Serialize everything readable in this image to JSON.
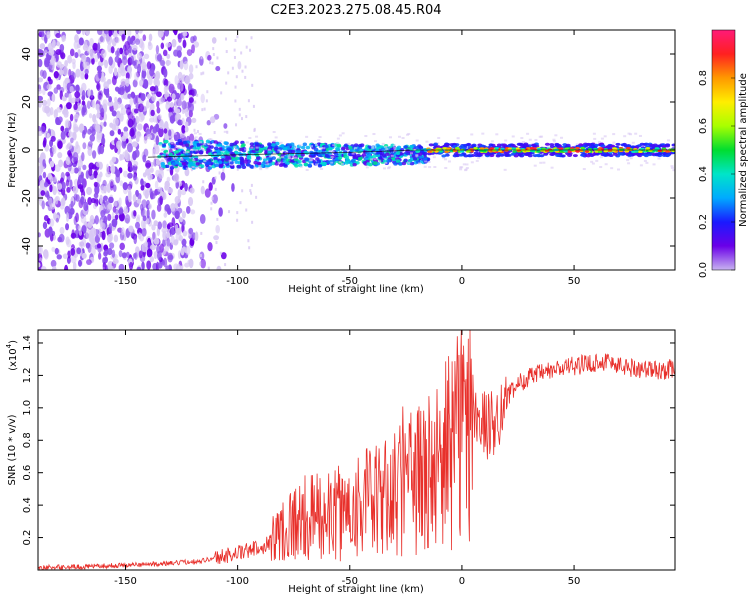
{
  "figure": {
    "title": "C2E3.2023.275.08.45.R04"
  },
  "colors": {
    "background": "#ffffff",
    "snr_line": "#e8302b",
    "scatter_low": "#d8c8f4",
    "scatter_mid": "#8a4dee",
    "scatter_high": "#6a00e8"
  },
  "chart_data": [
    {
      "type": "heatmap",
      "xlabel": "Height of straight line (km)",
      "ylabel": "Frequency (Hz)",
      "xlim": [
        -189,
        95
      ],
      "ylim": [
        -50,
        50
      ],
      "x_ticks": [
        -150,
        -100,
        -50,
        0,
        50
      ],
      "y_ticks": [
        -40,
        -20,
        0,
        20,
        40
      ],
      "grid": false,
      "colorbar": {
        "label": "Normalized spectral amplitude",
        "range": [
          0.0,
          1.0
        ],
        "ticks": [
          "0.0",
          "0.2",
          "0.4",
          "0.6",
          "0.8"
        ],
        "colormap": [
          "#c8b4f0",
          "#6a00e8",
          "#1a1aff",
          "#00aaff",
          "#00e5c8",
          "#00dd30",
          "#a8ff00",
          "#ffee00",
          "#ff9900",
          "#ff2020",
          "#ff1a78"
        ]
      },
      "regions": [
        {
          "x": [
            -189,
            -120
          ],
          "y": [
            -50,
            50
          ],
          "amplitude": [
            0.0,
            0.2
          ]
        },
        {
          "x": [
            -135,
            -15
          ],
          "y": [
            -10,
            7
          ],
          "amplitude": [
            0.1,
            0.5
          ]
        },
        {
          "x": [
            -15,
            95
          ],
          "y": [
            -4,
            4
          ],
          "amplitude": [
            0.1,
            1.0
          ]
        }
      ],
      "trace": {
        "x": [
          -140,
          -100,
          -50,
          -20,
          0,
          20,
          50,
          95
        ],
        "y": [
          -3,
          -2,
          -1,
          0,
          0,
          0,
          0,
          0
        ]
      }
    },
    {
      "type": "line",
      "xlabel": "Height of straight line (km)",
      "ylabel": "SNR (10 * v/v)",
      "y_scale_label": "(x10",
      "y_scale_exponent": "4",
      "y_scale_suffix": ")",
      "xlim": [
        -189,
        95
      ],
      "ylim": [
        0,
        14800
      ],
      "x_ticks": [
        -150,
        -100,
        -50,
        0,
        50
      ],
      "y_ticks": [
        2000,
        4000,
        6000,
        8000,
        10000,
        12000,
        14000
      ],
      "y_tick_labels": [
        "0.2",
        "0.4",
        "0.6",
        "0.8",
        "1.0",
        "1.2",
        "1.4"
      ],
      "grid": false,
      "series": [
        {
          "x": [
            -189,
            -170,
            -150,
            -130,
            -115,
            -105,
            -95,
            -88,
            -82,
            -78,
            -72,
            -65,
            -58,
            -50,
            -45,
            -40,
            -35,
            -30,
            -25,
            -20,
            -15,
            -12,
            -8,
            -4,
            0,
            4,
            8,
            12,
            16,
            20,
            25,
            30,
            40,
            50,
            60,
            65,
            70,
            80,
            90,
            95
          ],
          "y": [
            150,
            200,
            300,
            400,
            600,
            900,
            1200,
            1500,
            2200,
            2800,
            3100,
            3300,
            3300,
            3800,
            4300,
            4100,
            4300,
            4900,
            5200,
            5500,
            5800,
            6300,
            7000,
            7800,
            8700,
            9300,
            9300,
            8700,
            9600,
            10600,
            11500,
            11900,
            12300,
            12600,
            12800,
            12900,
            12600,
            12400,
            12300,
            12500
          ]
        }
      ]
    }
  ]
}
